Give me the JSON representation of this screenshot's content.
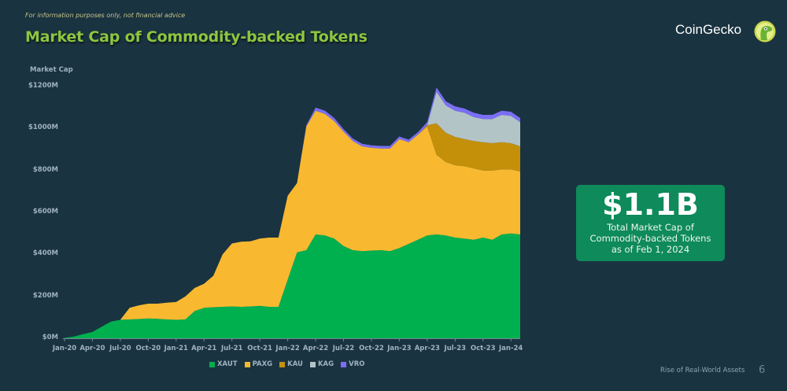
{
  "header": {
    "disclaimer": "For information purposes only, not financial advice",
    "title": "Market Cap of Commodity-backed Tokens",
    "brand": "CoinGecko"
  },
  "stat_box": {
    "value": "$1.1B",
    "caption_line1": "Total Market Cap of",
    "caption_line2": "Commodity-backed Tokens",
    "caption_line3": "as of Feb 1, 2024"
  },
  "footer": {
    "deck_title": "Rise of Real-World Assets",
    "page_number": "6"
  },
  "colors": {
    "background": "#1a3340",
    "title": "#8dc63f",
    "XAUT": "#00b04f",
    "PAXG": "#f8b931",
    "KAU": "#c4900a",
    "KAG": "#b3c4c7",
    "VRO": "#7b6ef6",
    "stat_box": "#0e8a5b"
  },
  "chart_data": {
    "type": "area",
    "stacked": true,
    "title": "Market Cap of Commodity-backed Tokens",
    "xlabel": "",
    "ylabel": "Market Cap",
    "ylim": [
      0,
      1200
    ],
    "yticks": [
      "$0M",
      "$200M",
      "$400M",
      "$600M",
      "$800M",
      "$1000M",
      "$1200M"
    ],
    "xticks": [
      "Jan-20",
      "Apr-20",
      "Jul-20",
      "Oct-20",
      "Jan-21",
      "Apr-21",
      "Jul-21",
      "Oct-21",
      "Jan-22",
      "Apr-22",
      "Jul-22",
      "Oct-22",
      "Jan-23",
      "Apr-23",
      "Jul-23",
      "Oct-23",
      "Jan-24"
    ],
    "grid": false,
    "legend_position": "bottom",
    "x": [
      "2020-01",
      "2020-02",
      "2020-03",
      "2020-04",
      "2020-05",
      "2020-06",
      "2020-07",
      "2020-08",
      "2020-09",
      "2020-10",
      "2020-11",
      "2020-12",
      "2021-01",
      "2021-02",
      "2021-03",
      "2021-04",
      "2021-05",
      "2021-06",
      "2021-07",
      "2021-08",
      "2021-09",
      "2021-10",
      "2021-11",
      "2021-12",
      "2022-01",
      "2022-02",
      "2022-03",
      "2022-04",
      "2022-05",
      "2022-06",
      "2022-07",
      "2022-08",
      "2022-09",
      "2022-10",
      "2022-11",
      "2022-12",
      "2023-01",
      "2023-02",
      "2023-03",
      "2023-04",
      "2023-05",
      "2023-06",
      "2023-07",
      "2023-08",
      "2023-09",
      "2023-10",
      "2023-11",
      "2023-12",
      "2024-01",
      "2024-02"
    ],
    "series": [
      {
        "name": "XAUT",
        "values": [
          2,
          8,
          20,
          30,
          55,
          80,
          88,
          90,
          92,
          95,
          93,
          90,
          88,
          90,
          130,
          145,
          148,
          150,
          152,
          150,
          152,
          155,
          150,
          150,
          280,
          410,
          420,
          495,
          490,
          475,
          440,
          420,
          415,
          418,
          420,
          415,
          430,
          450,
          470,
          490,
          495,
          490,
          480,
          475,
          470,
          480,
          470,
          495,
          500,
          495
        ]
      },
      {
        "name": "PAXG",
        "values": [
          0,
          0,
          0,
          0,
          0,
          0,
          0,
          55,
          65,
          70,
          72,
          80,
          85,
          110,
          110,
          115,
          150,
          250,
          300,
          310,
          310,
          320,
          330,
          330,
          400,
          330,
          590,
          590,
          580,
          560,
          545,
          520,
          500,
          490,
          485,
          490,
          520,
          485,
          500,
          520,
          380,
          350,
          345,
          345,
          340,
          320,
          330,
          310,
          305,
          300
        ]
      },
      {
        "name": "KAU",
        "values": [
          0,
          0,
          0,
          0,
          0,
          0,
          0,
          0,
          0,
          0,
          0,
          0,
          0,
          0,
          0,
          0,
          0,
          0,
          0,
          0,
          0,
          0,
          0,
          0,
          0,
          0,
          0,
          0,
          0,
          0,
          0,
          0,
          0,
          0,
          0,
          0,
          0,
          0,
          0,
          5,
          150,
          140,
          135,
          130,
          130,
          135,
          130,
          130,
          125,
          120
        ]
      },
      {
        "name": "KAG",
        "values": [
          0,
          0,
          0,
          0,
          0,
          0,
          0,
          0,
          0,
          0,
          0,
          0,
          0,
          0,
          0,
          0,
          0,
          0,
          0,
          0,
          0,
          0,
          0,
          0,
          0,
          0,
          0,
          0,
          0,
          0,
          0,
          0,
          0,
          0,
          0,
          0,
          0,
          0,
          0,
          0,
          150,
          130,
          125,
          125,
          115,
          110,
          115,
          130,
          130,
          115
        ]
      },
      {
        "name": "VRO",
        "values": [
          0,
          0,
          0,
          0,
          0,
          0,
          0,
          0,
          0,
          0,
          0,
          0,
          0,
          0,
          0,
          0,
          0,
          0,
          0,
          0,
          0,
          0,
          0,
          0,
          0,
          0,
          5,
          15,
          15,
          15,
          12,
          12,
          12,
          12,
          12,
          12,
          12,
          12,
          12,
          15,
          20,
          20,
          20,
          20,
          20,
          20,
          20,
          20,
          20,
          20
        ]
      }
    ]
  },
  "legend": [
    {
      "label": "XAUT",
      "color": "#00b04f"
    },
    {
      "label": "PAXG",
      "color": "#f8b931"
    },
    {
      "label": "KAU",
      "color": "#c4900a"
    },
    {
      "label": "KAG",
      "color": "#b3c4c7"
    },
    {
      "label": "VRO",
      "color": "#7b6ef6"
    }
  ]
}
